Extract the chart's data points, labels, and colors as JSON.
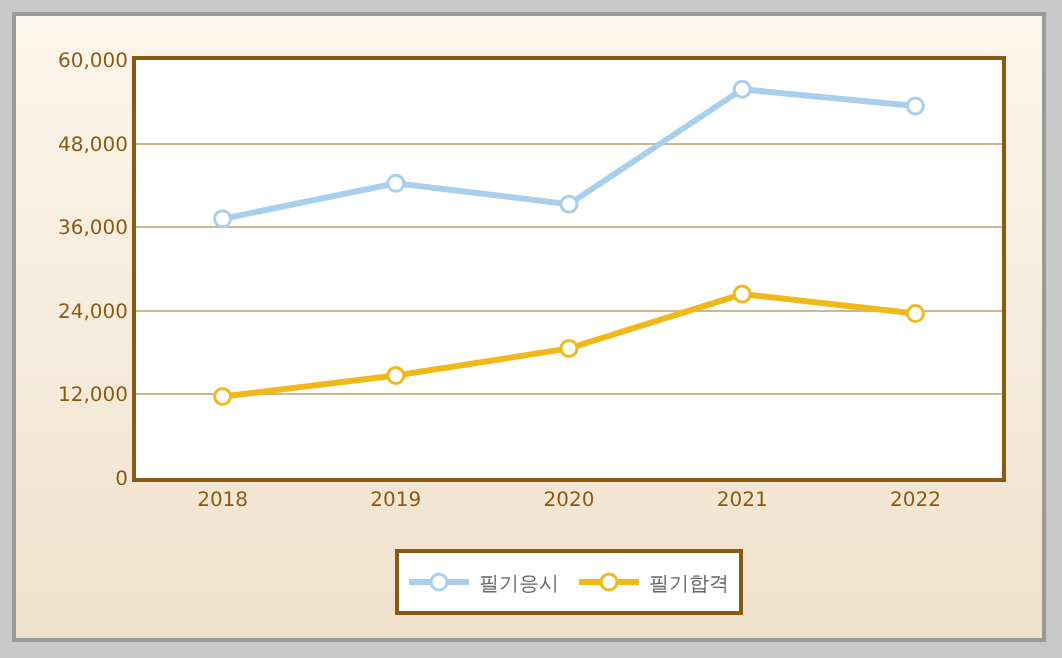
{
  "chart_data": {
    "type": "line",
    "categories": [
      "2018",
      "2019",
      "2020",
      "2021",
      "2022"
    ],
    "series": [
      {
        "name": "필기응시",
        "color": "#a9cfee",
        "values": [
          37200,
          42300,
          39300,
          55800,
          53400
        ]
      },
      {
        "name": "필기합격",
        "color": "#f0b819",
        "values": [
          11700,
          14700,
          18600,
          26400,
          23600
        ]
      }
    ],
    "ylim": [
      0,
      60000
    ],
    "yticks": [
      {
        "value": 0,
        "label": "0"
      },
      {
        "value": 12000,
        "label": "12,000"
      },
      {
        "value": 24000,
        "label": "24,000"
      },
      {
        "value": 36000,
        "label": "36,000"
      },
      {
        "value": 48000,
        "label": "48,000"
      },
      {
        "value": 60000,
        "label": "60,000"
      }
    ],
    "grid": "y",
    "legend": "bottom",
    "marker": "circle",
    "line_style": "solid"
  }
}
